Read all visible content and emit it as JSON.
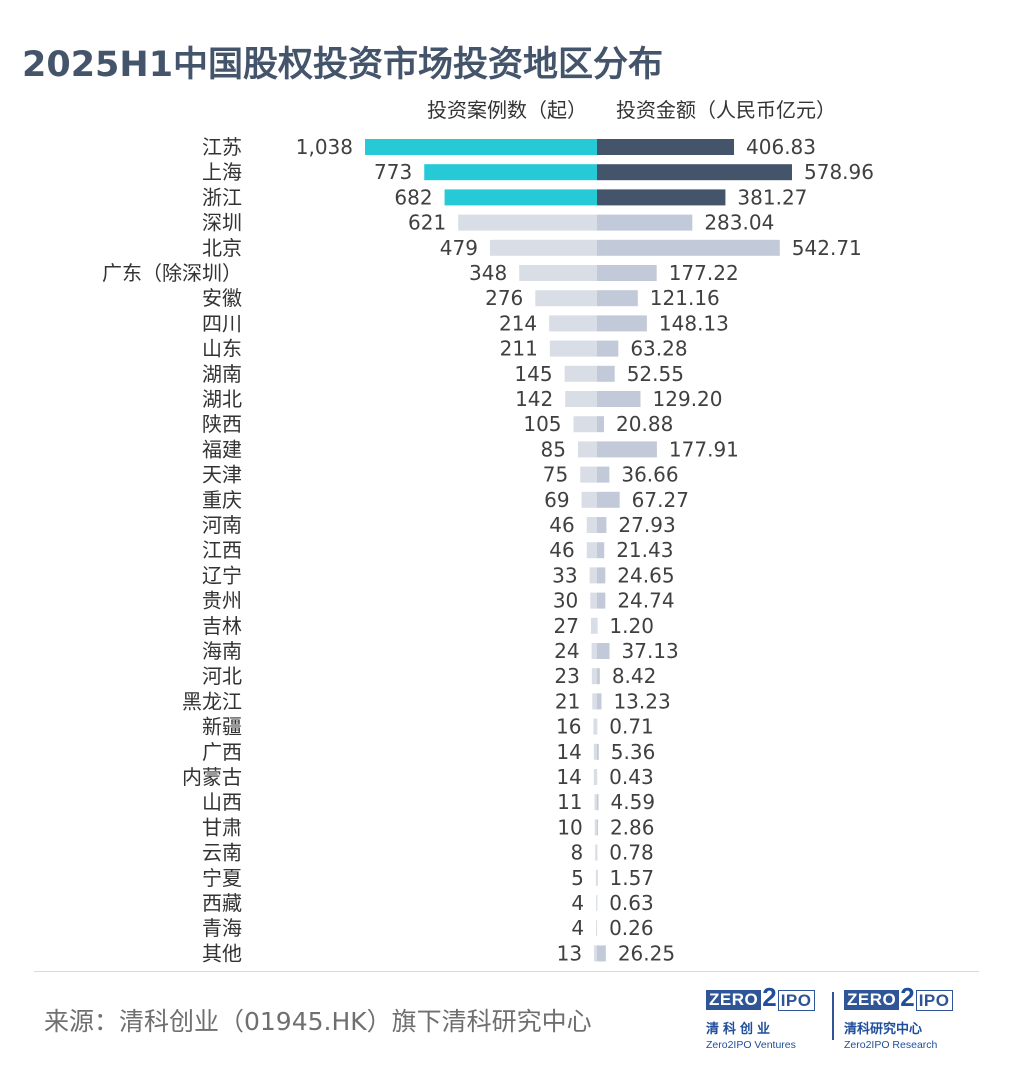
{
  "title": "2025H1中国股权投资市场投资地区分布",
  "source": "来源：清科创业（01945.HK）旗下清科研究中心",
  "logos": {
    "ventures": {
      "zero": "ZERO",
      "two": "2",
      "ipo": "IPO",
      "cn": "清科创业",
      "en": "Zero2IPO Ventures"
    },
    "research": {
      "zero": "ZERO",
      "two": "2",
      "ipo": "IPO",
      "cn": "清科研究中心",
      "en": "Zero2IPO Research"
    }
  },
  "colors": {
    "title": "#44546a",
    "left_top3": "#26c9d6",
    "left_other": "#d8dde6",
    "right_top3": "#44546a",
    "right_other": "#c2c9d8",
    "logo_blue": "#2f5597"
  },
  "chart_data": {
    "type": "bar",
    "subtype": "back-to-back horizontal bar",
    "title": "2025H1中国股权投资市场投资地区分布",
    "categories": [
      "江苏",
      "上海",
      "浙江",
      "深圳",
      "北京",
      "广东（除深圳）",
      "安徽",
      "四川",
      "山东",
      "湖南",
      "湖北",
      "陕西",
      "福建",
      "天津",
      "重庆",
      "河南",
      "江西",
      "辽宁",
      "贵州",
      "吉林",
      "海南",
      "河北",
      "黑龙江",
      "新疆",
      "广西",
      "内蒙古",
      "山西",
      "甘肃",
      "云南",
      "宁夏",
      "西藏",
      "青海",
      "其他"
    ],
    "series": [
      {
        "name": "投资案例数（起）",
        "side": "left",
        "values": [
          1038,
          773,
          682,
          621,
          479,
          348,
          276,
          214,
          211,
          145,
          142,
          105,
          85,
          75,
          69,
          46,
          46,
          33,
          30,
          27,
          24,
          23,
          21,
          16,
          14,
          14,
          11,
          10,
          8,
          5,
          4,
          4,
          13
        ],
        "labels": [
          "1,038",
          "773",
          "682",
          "621",
          "479",
          "348",
          "276",
          "214",
          "211",
          "145",
          "142",
          "105",
          "85",
          "75",
          "69",
          "46",
          "46",
          "33",
          "30",
          "27",
          "24",
          "23",
          "21",
          "16",
          "14",
          "14",
          "11",
          "10",
          "8",
          "5",
          "4",
          "4",
          "13"
        ],
        "highlight_top": 3
      },
      {
        "name": "投资金额（人民币亿元）",
        "side": "right",
        "values": [
          406.83,
          578.96,
          381.27,
          283.04,
          542.71,
          177.22,
          121.16,
          148.13,
          63.28,
          52.55,
          129.2,
          20.88,
          177.91,
          36.66,
          67.27,
          27.93,
          21.43,
          24.65,
          24.74,
          1.2,
          37.13,
          8.42,
          13.23,
          0.71,
          5.36,
          0.43,
          4.59,
          2.86,
          0.78,
          1.57,
          0.63,
          0.26,
          26.25
        ],
        "labels": [
          "406.83",
          "578.96",
          "381.27",
          "283.04",
          "542.71",
          "177.22",
          "121.16",
          "148.13",
          "63.28",
          "52.55",
          "129.20",
          "20.88",
          "177.91",
          "36.66",
          "67.27",
          "27.93",
          "21.43",
          "24.65",
          "24.74",
          "1.20",
          "37.13",
          "8.42",
          "13.23",
          "0.71",
          "5.36",
          "0.43",
          "4.59",
          "2.86",
          "0.78",
          "1.57",
          "0.63",
          "0.26",
          "26.25"
        ],
        "highlight_top": 3
      }
    ]
  }
}
